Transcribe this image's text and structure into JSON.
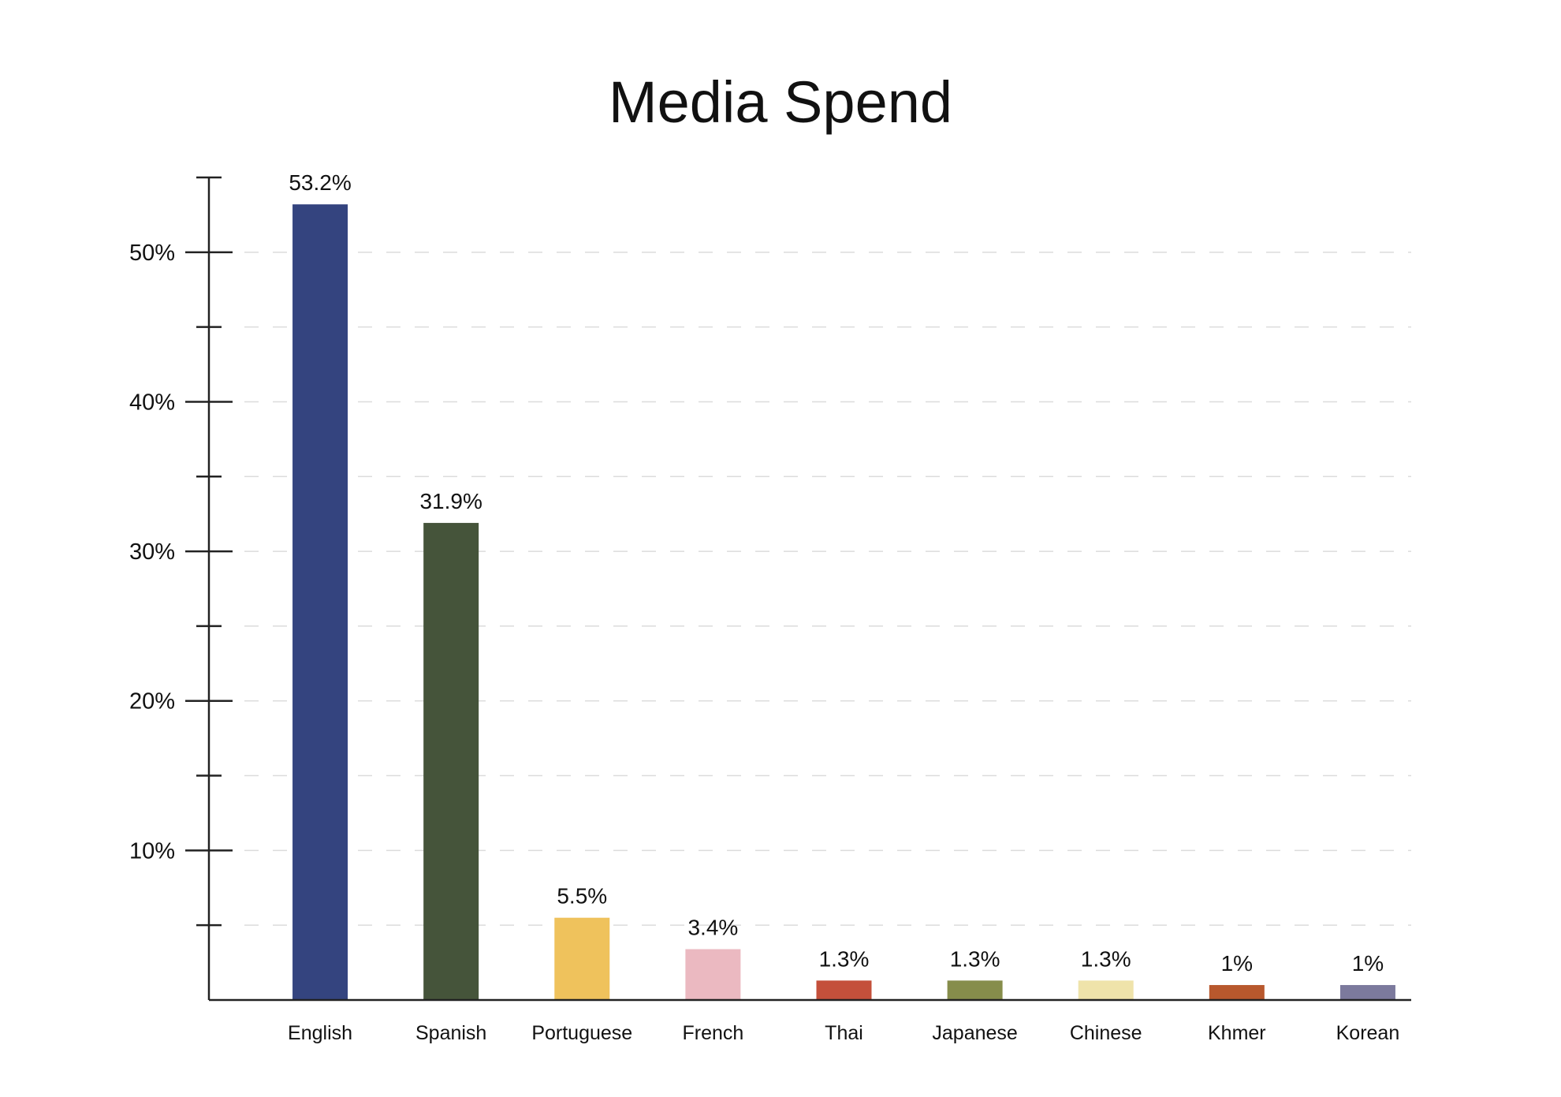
{
  "chart_data": {
    "type": "bar",
    "title": "Media Spend",
    "xlabel": "",
    "ylabel": "",
    "categories": [
      "English",
      "Spanish",
      "Portuguese",
      "French",
      "Thai",
      "Japanese",
      "Chinese",
      "Khmer",
      "Korean"
    ],
    "values": [
      53.2,
      31.9,
      5.5,
      3.4,
      1.3,
      1.3,
      1.3,
      1,
      1
    ],
    "value_labels": [
      "53.2%",
      "31.9%",
      "5.5%",
      "3.4%",
      "1.3%",
      "1.3%",
      "1.3%",
      "1%",
      "1%"
    ],
    "colors": [
      "#34447f",
      "#45543a",
      "#efc25c",
      "#ebb9c1",
      "#c4503b",
      "#868d4b",
      "#efe3aa",
      "#b8582d",
      "#7c7a9d"
    ],
    "ylim": [
      0,
      55
    ],
    "yticks": [
      10,
      20,
      30,
      40,
      50
    ],
    "ytick_labels": [
      "10%",
      "20%",
      "30%",
      "40%",
      "50%"
    ],
    "minor_ticks": [
      5,
      15,
      25,
      35,
      45,
      55
    ],
    "grid": true,
    "grid_style": "dashed"
  }
}
